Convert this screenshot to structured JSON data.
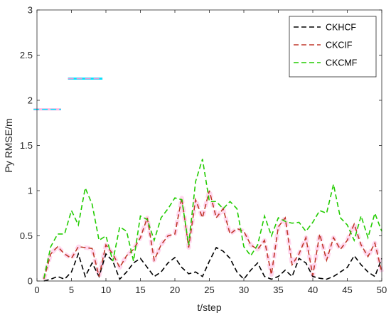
{
  "chart_data": {
    "type": "line",
    "xlabel": "t/step",
    "ylabel": "Py RMSE/m",
    "xlim": [
      0,
      50
    ],
    "ylim": [
      0,
      3
    ],
    "xticks": [
      0,
      5,
      10,
      15,
      20,
      25,
      30,
      35,
      40,
      45,
      50
    ],
    "yticks": [
      0,
      0.5,
      1,
      1.5,
      2,
      2.5,
      3
    ],
    "ytick_labels": [
      "0",
      "0.5",
      "1",
      "1.5",
      "2",
      "2.5",
      "3"
    ],
    "grid": false,
    "legend_position": "top-right",
    "x": [
      1,
      2,
      3,
      4,
      5,
      6,
      7,
      8,
      9,
      10,
      11,
      12,
      13,
      14,
      15,
      16,
      17,
      18,
      19,
      20,
      21,
      22,
      23,
      24,
      25,
      26,
      27,
      28,
      29,
      30,
      31,
      32,
      33,
      34,
      35,
      36,
      37,
      38,
      39,
      40,
      41,
      42,
      43,
      44,
      45,
      46,
      47,
      48,
      49,
      50
    ],
    "series": [
      {
        "name": "CKHCF",
        "color": "#000000",
        "values": [
          0.0,
          0.02,
          0.05,
          0.02,
          0.1,
          0.3,
          0.05,
          0.2,
          0.05,
          0.3,
          0.22,
          0.02,
          0.1,
          0.2,
          0.25,
          0.15,
          0.05,
          0.1,
          0.2,
          0.26,
          0.15,
          0.08,
          0.1,
          0.05,
          0.22,
          0.37,
          0.33,
          0.25,
          0.1,
          0.02,
          0.12,
          0.2,
          0.05,
          0.02,
          0.05,
          0.12,
          0.05,
          0.25,
          0.2,
          0.05,
          0.03,
          0.02,
          0.05,
          0.1,
          0.15,
          0.28,
          0.18,
          0.1,
          0.05,
          0.25
        ]
      },
      {
        "name": "CKCIF",
        "color": "#c0392b",
        "values": [
          0.02,
          0.3,
          0.38,
          0.3,
          0.25,
          0.38,
          0.37,
          0.36,
          0.05,
          0.4,
          0.3,
          0.15,
          0.28,
          0.35,
          0.48,
          0.7,
          0.23,
          0.4,
          0.5,
          0.52,
          0.92,
          0.37,
          0.9,
          0.7,
          1.0,
          0.7,
          0.8,
          0.52,
          0.58,
          0.55,
          0.4,
          0.35,
          0.45,
          0.07,
          0.6,
          0.7,
          0.18,
          0.3,
          0.48,
          0.06,
          0.52,
          0.23,
          0.48,
          0.35,
          0.45,
          0.63,
          0.4,
          0.27,
          0.42,
          0.1
        ]
      },
      {
        "name": "CKCMF",
        "color": "#22cc00",
        "values": [
          0.03,
          0.38,
          0.52,
          0.52,
          0.78,
          0.62,
          1.03,
          0.85,
          0.45,
          0.5,
          0.22,
          0.6,
          0.55,
          0.22,
          0.72,
          0.68,
          0.45,
          0.7,
          0.8,
          0.92,
          0.9,
          0.4,
          1.1,
          1.35,
          0.88,
          0.88,
          0.8,
          0.88,
          0.8,
          0.38,
          0.28,
          0.4,
          0.72,
          0.5,
          0.7,
          0.66,
          0.64,
          0.65,
          0.55,
          0.65,
          0.78,
          0.75,
          1.07,
          0.7,
          0.62,
          0.45,
          0.72,
          0.48,
          0.75,
          0.55
        ]
      }
    ],
    "annotations": [
      {
        "type": "dash-marks",
        "color_a": "#00e5ff",
        "color_b": "#ffb6e0",
        "x_range": [
          -0.5,
          3.5
        ],
        "y": 1.9
      },
      {
        "type": "dash-marks",
        "color_a": "#ff8fd0",
        "color_b": "#00e5ff",
        "x_range": [
          4.5,
          9.5
        ],
        "y": 2.24
      }
    ],
    "highlight_color": "#ffb6e0"
  }
}
